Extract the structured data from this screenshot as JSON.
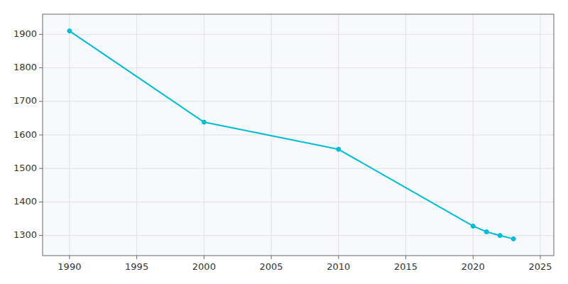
{
  "chart_data": {
    "type": "line",
    "x": [
      1990,
      2000,
      2010,
      2020,
      2021,
      2022,
      2023
    ],
    "values": [
      1910,
      1638,
      1557,
      1328,
      1311,
      1300,
      1290
    ],
    "color": "#00BCD4",
    "marker": "o",
    "xlim": [
      1988,
      2026
    ],
    "ylim": [
      1240,
      1960
    ],
    "xticks": [
      1990,
      1995,
      2000,
      2005,
      2010,
      2015,
      2020,
      2025
    ],
    "yticks": [
      1300,
      1400,
      1500,
      1600,
      1700,
      1800,
      1900
    ],
    "grid": true
  }
}
